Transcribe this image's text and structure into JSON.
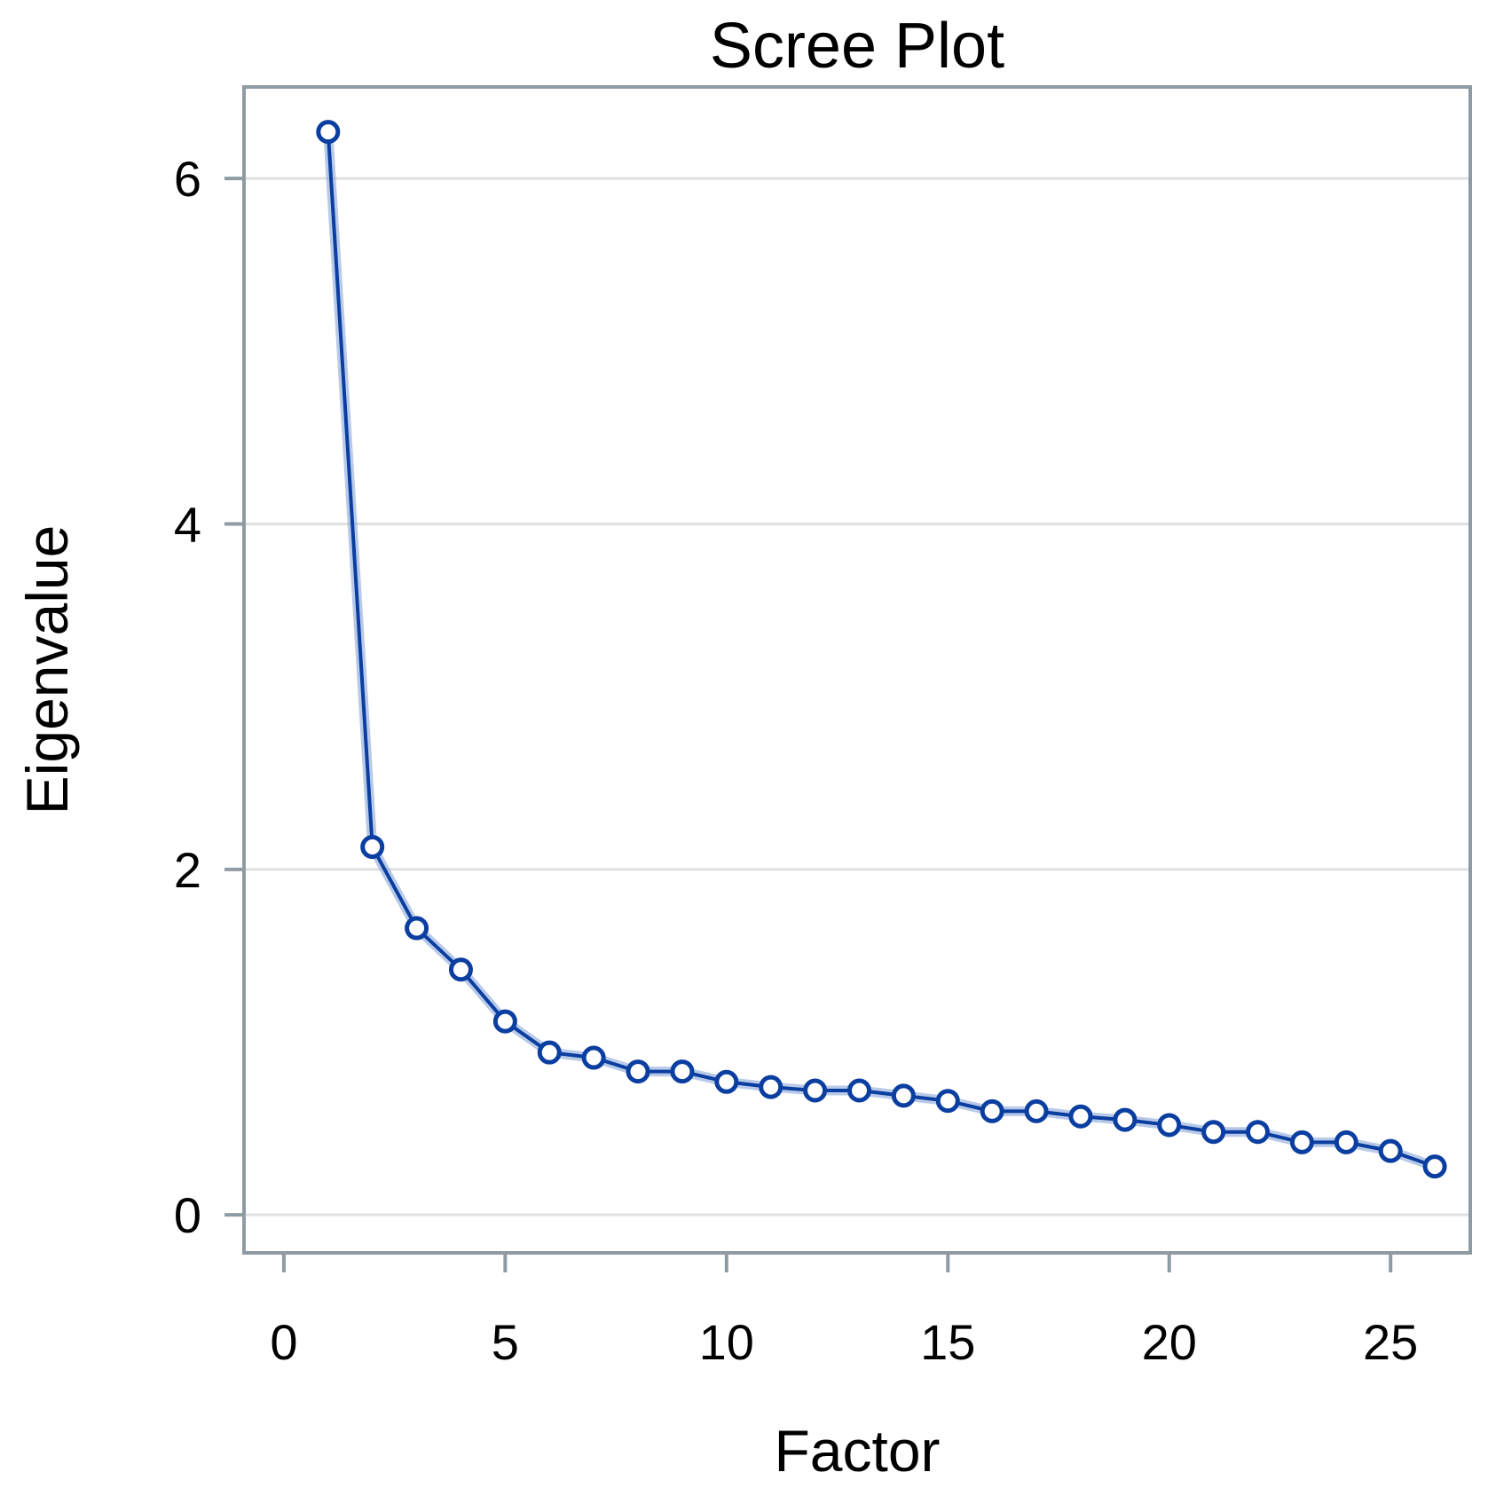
{
  "chart_data": {
    "type": "line",
    "title": "Scree Plot",
    "xlabel": "Factor",
    "ylabel": "Eigenvalue",
    "x": [
      1,
      2,
      3,
      4,
      5,
      6,
      7,
      8,
      9,
      10,
      11,
      12,
      13,
      14,
      15,
      16,
      17,
      18,
      19,
      20,
      21,
      22,
      23,
      24,
      25,
      26
    ],
    "series": [
      {
        "values": [
          6.27,
          2.13,
          1.66,
          1.42,
          1.12,
          0.94,
          0.91,
          0.83,
          0.83,
          0.77,
          0.74,
          0.72,
          0.72,
          0.69,
          0.66,
          0.6,
          0.6,
          0.57,
          0.55,
          0.52,
          0.48,
          0.48,
          0.42,
          0.42,
          0.37,
          0.28
        ],
        "color": "#0a3ea0"
      }
    ],
    "xticks": [
      0,
      5,
      10,
      15,
      20,
      25
    ],
    "yticks": [
      0,
      2,
      4,
      6
    ],
    "xlim": [
      -0.9,
      26.8
    ],
    "ylim": [
      -0.22,
      6.53
    ],
    "grid": "horizontal",
    "marker": "open-circle",
    "frame_color": "#8f9ba3",
    "grid_color": "#e1e1e1"
  }
}
